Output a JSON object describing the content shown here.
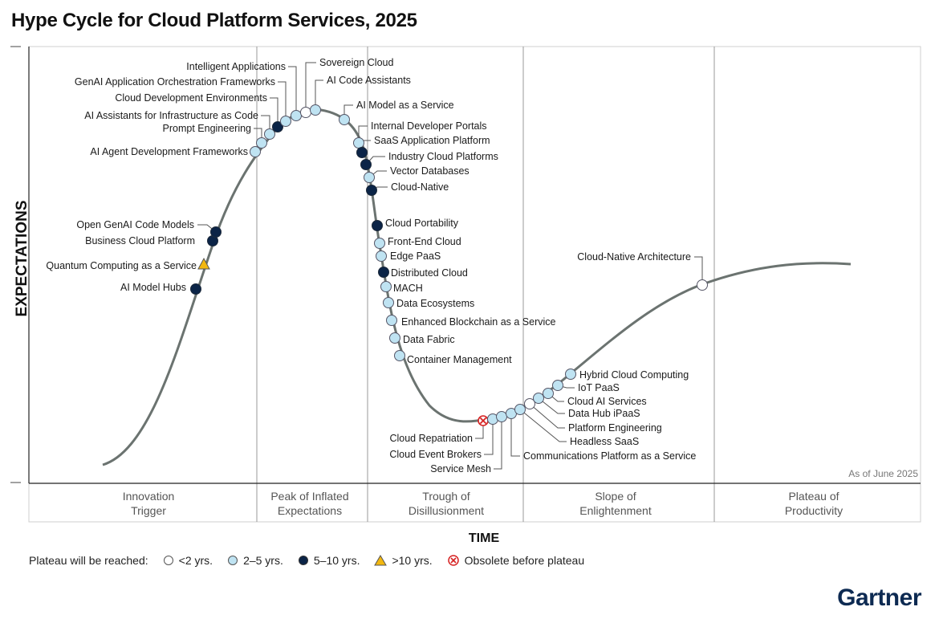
{
  "title": "Hype Cycle for Cloud Platform Services, 2025",
  "brand": "Gartner",
  "colors": {
    "curve": "#6b7370",
    "lt2": "#ffffff",
    "y2to5": "#bfe3f2",
    "y5to10": "#0b2447",
    "gt10": "#f2b70f",
    "obsolete": "#d62222"
  },
  "legend": {
    "title": "Plateau will be reached:",
    "items": [
      {
        "key": "lt2",
        "label": "<2 yrs."
      },
      {
        "key": "y2to5",
        "label": "2–5 yrs."
      },
      {
        "key": "y5to10",
        "label": "5–10 yrs."
      },
      {
        "key": "gt10",
        "label": ">10 yrs."
      },
      {
        "key": "obsolete",
        "label": "Obsolete before plateau"
      }
    ]
  },
  "chart_data": {
    "type": "scatter",
    "title": "Hype Cycle for Cloud Platform Services, 2025",
    "xlabel": "TIME",
    "ylabel": "EXPECTATIONS",
    "note": "As of June 2025",
    "phases": [
      {
        "name": "Innovation Trigger",
        "lines": [
          "Innovation",
          "Trigger"
        ]
      },
      {
        "name": "Peak of Inflated Expectations",
        "lines": [
          "Peak of Inflated",
          "Expectations"
        ]
      },
      {
        "name": "Trough of Disillusionment",
        "lines": [
          "Trough of",
          "Disillusionment"
        ]
      },
      {
        "name": "Slope of Enlightenment",
        "lines": [
          "Slope of",
          "Enlightenment"
        ]
      },
      {
        "name": "Plateau of Productivity",
        "lines": [
          "Plateau of",
          "Productivity"
        ]
      }
    ],
    "points": [
      {
        "label": "AI Model Hubs",
        "category": "y5to10",
        "phase": "Innovation Trigger"
      },
      {
        "label": "Quantum Computing as a Service",
        "category": "gt10",
        "phase": "Innovation Trigger"
      },
      {
        "label": "Business Cloud Platform",
        "category": "y5to10",
        "phase": "Innovation Trigger"
      },
      {
        "label": "Open GenAI Code Models",
        "category": "y5to10",
        "phase": "Innovation Trigger"
      },
      {
        "label": "AI Agent Development Frameworks",
        "category": "y2to5",
        "phase": "Innovation Trigger"
      },
      {
        "label": "Prompt Engineering",
        "category": "y2to5",
        "phase": "Peak of Inflated Expectations"
      },
      {
        "label": "AI Assistants for Infrastructure as Code",
        "category": "y2to5",
        "phase": "Peak of Inflated Expectations"
      },
      {
        "label": "Cloud Development Environments",
        "category": "y5to10",
        "phase": "Peak of Inflated Expectations"
      },
      {
        "label": "GenAI Application Orchestration Frameworks",
        "category": "y2to5",
        "phase": "Peak of Inflated Expectations"
      },
      {
        "label": "Intelligent Applications",
        "category": "y2to5",
        "phase": "Peak of Inflated Expectations"
      },
      {
        "label": "Sovereign Cloud",
        "category": "lt2",
        "phase": "Peak of Inflated Expectations"
      },
      {
        "label": "AI Code Assistants",
        "category": "y2to5",
        "phase": "Peak of Inflated Expectations"
      },
      {
        "label": "AI Model as a Service",
        "category": "y2to5",
        "phase": "Peak of Inflated Expectations"
      },
      {
        "label": "Internal Developer Portals",
        "category": "y2to5",
        "phase": "Peak of Inflated Expectations"
      },
      {
        "label": "SaaS Application Platform",
        "category": "y5to10",
        "phase": "Peak of Inflated Expectations"
      },
      {
        "label": "Industry Cloud Platforms",
        "category": "y5to10",
        "phase": "Trough of Disillusionment"
      },
      {
        "label": "Vector Databases",
        "category": "y2to5",
        "phase": "Trough of Disillusionment"
      },
      {
        "label": "Cloud-Native",
        "category": "y5to10",
        "phase": "Trough of Disillusionment"
      },
      {
        "label": "Cloud Portability",
        "category": "y5to10",
        "phase": "Trough of Disillusionment"
      },
      {
        "label": "Front-End Cloud",
        "category": "y2to5",
        "phase": "Trough of Disillusionment"
      },
      {
        "label": "Edge PaaS",
        "category": "y2to5",
        "phase": "Trough of Disillusionment"
      },
      {
        "label": "Distributed Cloud",
        "category": "y5to10",
        "phase": "Trough of Disillusionment"
      },
      {
        "label": "MACH",
        "category": "y2to5",
        "phase": "Trough of Disillusionment"
      },
      {
        "label": "Data Ecosystems",
        "category": "y2to5",
        "phase": "Trough of Disillusionment"
      },
      {
        "label": "Enhanced Blockchain as a Service",
        "category": "y2to5",
        "phase": "Trough of Disillusionment"
      },
      {
        "label": "Data Fabric",
        "category": "y2to5",
        "phase": "Trough of Disillusionment"
      },
      {
        "label": "Container Management",
        "category": "y2to5",
        "phase": "Trough of Disillusionment"
      },
      {
        "label": "Cloud Repatriation",
        "category": "obsolete",
        "phase": "Trough of Disillusionment"
      },
      {
        "label": "Cloud Event Brokers",
        "category": "y2to5",
        "phase": "Trough of Disillusionment"
      },
      {
        "label": "Service Mesh",
        "category": "y2to5",
        "phase": "Trough of Disillusionment"
      },
      {
        "label": "Communications Platform as a Service",
        "category": "y2to5",
        "phase": "Trough of Disillusionment"
      },
      {
        "label": "Headless SaaS",
        "category": "y2to5",
        "phase": "Trough of Disillusionment"
      },
      {
        "label": "Platform Engineering",
        "category": "lt2",
        "phase": "Slope of Enlightenment"
      },
      {
        "label": "Data Hub iPaaS",
        "category": "y2to5",
        "phase": "Slope of Enlightenment"
      },
      {
        "label": "Cloud AI Services",
        "category": "y2to5",
        "phase": "Slope of Enlightenment"
      },
      {
        "label": "IoT PaaS",
        "category": "y2to5",
        "phase": "Slope of Enlightenment"
      },
      {
        "label": "Hybrid Cloud Computing",
        "category": "y2to5",
        "phase": "Slope of Enlightenment"
      },
      {
        "label": "Cloud-Native Architecture",
        "category": "lt2",
        "phase": "Slope of Enlightenment"
      }
    ]
  }
}
